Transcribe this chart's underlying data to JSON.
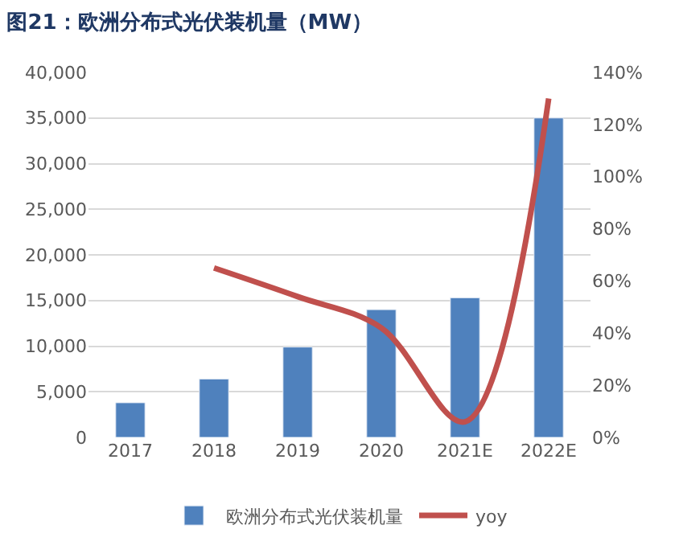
{
  "chart_data": {
    "type": "bar",
    "title": "图21：欧洲分布式光伏装机量（MW）",
    "categories": [
      "2017",
      "2018",
      "2019",
      "2020",
      "2021E",
      "2022E"
    ],
    "series": [
      {
        "name": "欧洲分布式光伏装机量",
        "color": "#4f81bd",
        "values": [
          3800,
          6400,
          9900,
          14000,
          15300,
          35000
        ]
      },
      {
        "name": "yoy",
        "type": "line",
        "axis": "y2",
        "color": "#c0504d",
        "values": [
          null,
          65,
          54,
          42,
          6,
          130
        ]
      }
    ],
    "ylim": [
      0,
      40000
    ],
    "yticks": [
      {
        "value": 0,
        "label": "0"
      },
      {
        "value": 5000,
        "label": "5,000"
      },
      {
        "value": 10000,
        "label": "10,000"
      },
      {
        "value": 15000,
        "label": "15,000"
      },
      {
        "value": 20000,
        "label": "20,000"
      },
      {
        "value": 25000,
        "label": "25,000"
      },
      {
        "value": 30000,
        "label": "30,000"
      },
      {
        "value": 35000,
        "label": "35,000"
      },
      {
        "value": 40000,
        "label": "40,000"
      }
    ],
    "y2lim": [
      0,
      140
    ],
    "y2ticks": [
      {
        "value": 0,
        "label": "0%"
      },
      {
        "value": 20,
        "label": "20%"
      },
      {
        "value": 40,
        "label": "40%"
      },
      {
        "value": 60,
        "label": "60%"
      },
      {
        "value": 80,
        "label": "80%"
      },
      {
        "value": 100,
        "label": "100%"
      },
      {
        "value": 120,
        "label": "120%"
      },
      {
        "value": 140,
        "label": "140%"
      }
    ],
    "grid": "y",
    "legend": "bottom"
  }
}
